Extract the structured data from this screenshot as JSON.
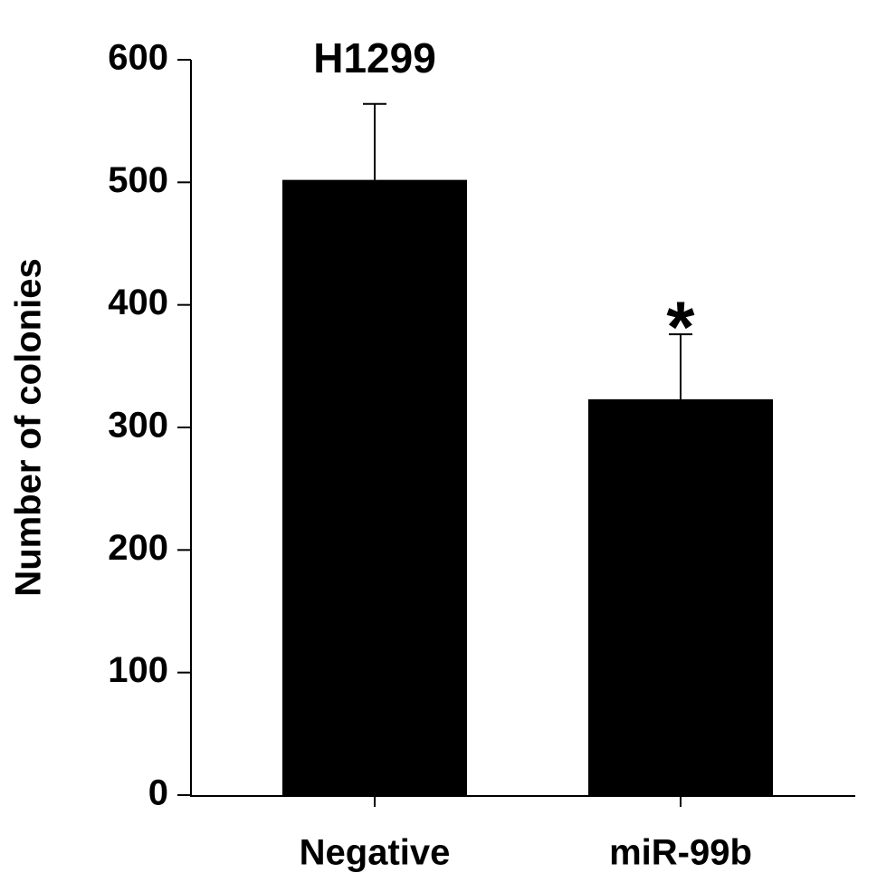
{
  "chart_data": {
    "type": "bar",
    "title": "H1299",
    "y_label": "Number of colonies",
    "categories": [
      "Negative",
      "miR-99b"
    ],
    "values": [
      502,
      323
    ],
    "errors": [
      62,
      53
    ],
    "color": "#000000",
    "ylim": [
      0,
      600
    ],
    "yticks": [
      0,
      100,
      200,
      300,
      400,
      500,
      600
    ],
    "grid": false,
    "annotations": [
      {
        "text": "*",
        "category": "miR-99b"
      }
    ]
  }
}
